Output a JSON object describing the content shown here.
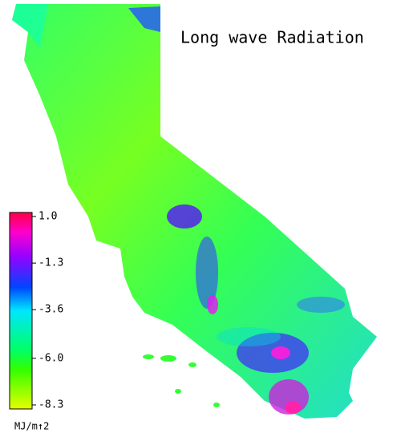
{
  "title": "Long wave Radiation",
  "colorbar": {
    "range": [
      -8.3,
      1.0
    ],
    "ticks": [
      {
        "value": 1.0,
        "label": "1.0"
      },
      -1.3,
      -3.6,
      {
        "value": -6.0,
        "label": "-6.0"
      },
      -8.3
    ],
    "unit": "MJ/m↑2"
  }
}
